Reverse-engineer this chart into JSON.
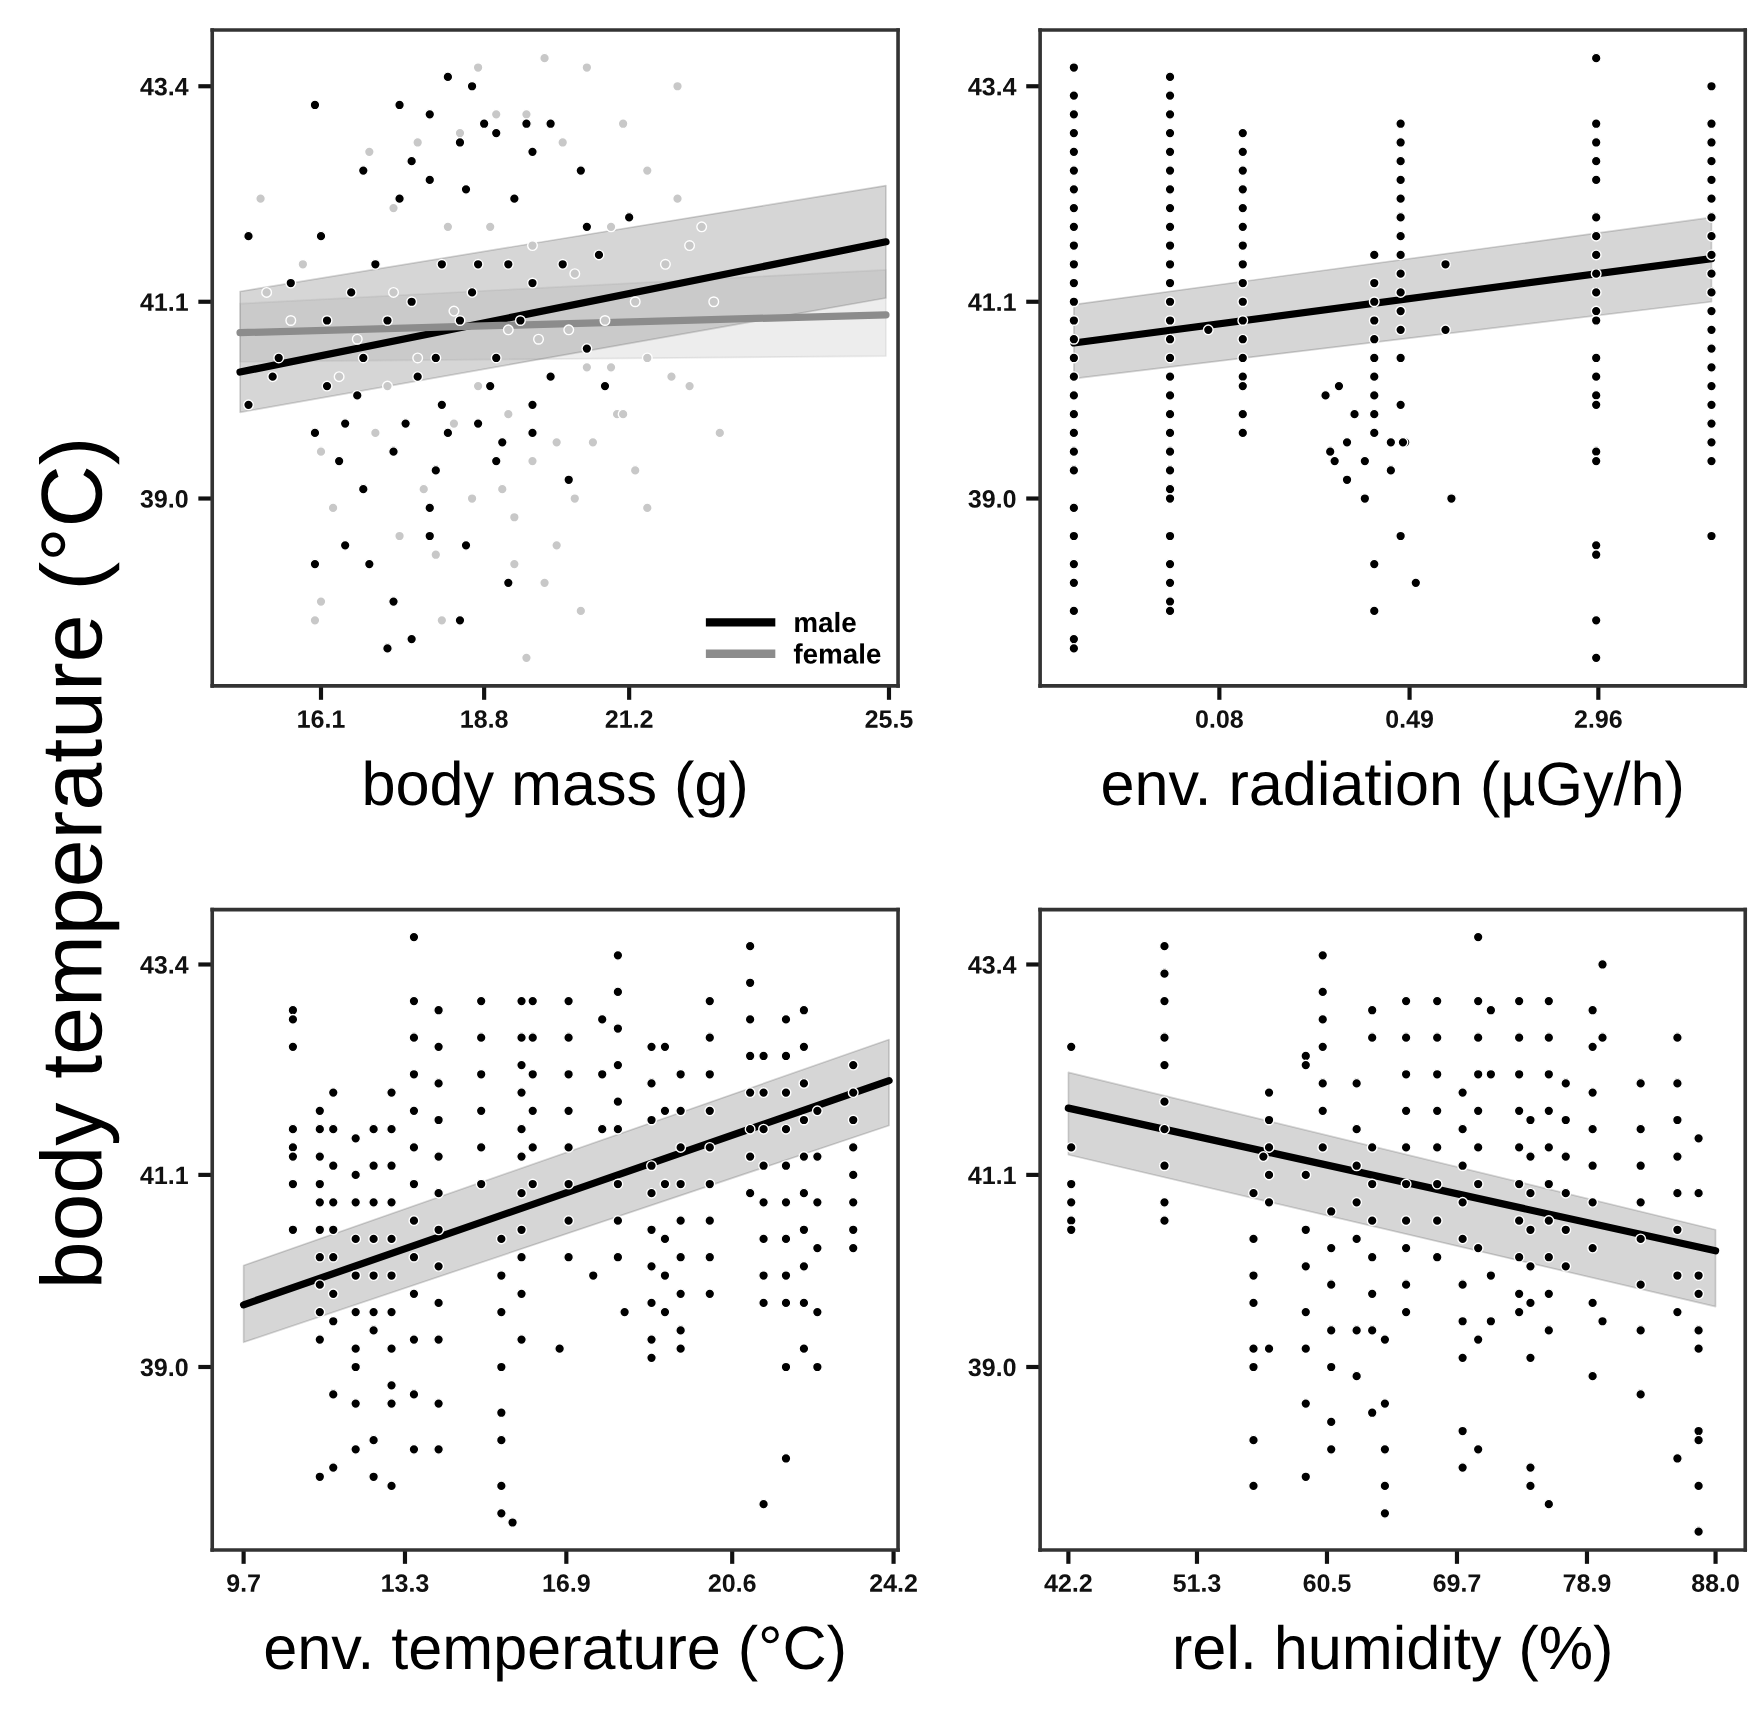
{
  "chart_data": [
    {
      "type": "scatter",
      "ylabel": "body temperature (°C)",
      "xlabel": "body mass (g)",
      "xlim": [
        14.3,
        25.65
      ],
      "xticks": [
        16.1,
        18.8,
        21.2,
        25.5
      ],
      "ylim": [
        37.0,
        44.0
      ],
      "yticks": [
        {
          "value": 39,
          "label": "39.0"
        },
        {
          "value": 41.1,
          "label": "41.1"
        },
        {
          "value": 43.4,
          "label": "43.4"
        }
      ],
      "legend": "bottom right",
      "series": [
        {
          "color": "#c8c8c8",
          "marker": "circle",
          "x": [
            19.8,
            20.5,
            18.7,
            22.0,
            15.1,
            15.8,
            21.1,
            21.5,
            22.0,
            22.4,
            22.2,
            22.6,
            22.7,
            22.2,
            21.9,
            21.5,
            21.3,
            21.0,
            20.3,
            20.0,
            19.8,
            20.4,
            19.5,
            18.0,
            18.1,
            16.1,
            16.0,
            16.3,
            17.4,
            19.3,
            19.3,
            16.4,
            16.1,
            17.0,
            17.8,
            18.6,
            19.1,
            19.6,
            20.0,
            20.6,
            21.1,
            20.5,
            20.9,
            21.5,
            20.2,
            20.8,
            21.3,
            21.8,
            20.3,
            20.9,
            20.1,
            19.5,
            19.0,
            18.4,
            17.7,
            16.9,
            17.3,
            18.2,
            18.9,
            19.6,
            17.3,
            18.3,
            19.2,
            19.7,
            17.7,
            18.7,
            17.2,
            19.2,
            18.3,
            16.7,
            15.6,
            15.2
          ],
          "values": [
            43.7,
            43.6,
            43.6,
            43.4,
            42.2,
            41.5,
            43.0,
            42.5,
            42.2,
            41.9,
            41.7,
            41.1,
            39.7,
            40.2,
            40.3,
            38.9,
            39.3,
            39.9,
            39.0,
            38.5,
            38.1,
            37.8,
            37.3,
            38.4,
            37.7,
            37.9,
            37.7,
            38.9,
            38.6,
            38.8,
            38.3,
            40.3,
            39.5,
            39.7,
            39.1,
            39.0,
            39.1,
            39.4,
            39.6,
            39.6,
            39.9,
            40.4,
            40.4,
            40.5,
            40.8,
            40.9,
            41.1,
            41.5,
            41.4,
            41.9,
            42.8,
            43.1,
            43.1,
            42.9,
            42.8,
            42.7,
            42.1,
            41.9,
            41.9,
            41.7,
            41.2,
            41.0,
            40.8,
            40.7,
            40.5,
            40.2,
            40.2,
            39.9,
            39.8,
            40.7,
            40.9,
            41.2
          ]
        },
        {
          "color": "#000000",
          "marker": "circle",
          "x": [
            14.9,
            14.9,
            16.0,
            17.4,
            18.2,
            18.6,
            15.6,
            16.1,
            16.0,
            16.0,
            16.9,
            17.2,
            17.6,
            17.3,
            18.4,
            17.9,
            19.2,
            18.5,
            16.5,
            16.8,
            17.9,
            19.6,
            20.2,
            20.8,
            21.2,
            20.4,
            19.9,
            19.5,
            18.8,
            17.9,
            16.8,
            17.6,
            18.4,
            19.0,
            19.6,
            17.4,
            17.9,
            18.5,
            19.3,
            20.5,
            17.0,
            18.1,
            18.7,
            19.2,
            20.1,
            20.7,
            16.6,
            17.6,
            18.6,
            19.6,
            16.2,
            17.2,
            18.4,
            19.4,
            15.4,
            16.8,
            18.0,
            19.0,
            20.5,
            16.2,
            17.7,
            18.9,
            19.9,
            16.7,
            18.1,
            19.6,
            16.5,
            17.5,
            18.7,
            16.4,
            17.3,
            18.2,
            19.1,
            18.0,
            19.0,
            15.3
          ],
          "values": [
            41.8,
            40.0,
            43.2,
            43.2,
            43.5,
            43.4,
            41.3,
            41.8,
            39.7,
            38.3,
            38.3,
            37.4,
            37.5,
            37.9,
            37.7,
            38.6,
            38.1,
            38.5,
            38.5,
            39.1,
            38.9,
            39.7,
            39.2,
            40.2,
            42.0,
            42.5,
            43.0,
            43.0,
            43.0,
            43.1,
            42.5,
            42.6,
            42.8,
            42.9,
            42.7,
            42.2,
            42.4,
            42.3,
            42.2,
            41.9,
            41.5,
            41.5,
            41.5,
            41.5,
            41.5,
            41.6,
            41.2,
            41.1,
            41.2,
            41.3,
            40.9,
            40.9,
            40.9,
            40.9,
            40.5,
            40.5,
            40.5,
            40.5,
            40.6,
            40.2,
            40.3,
            40.2,
            40.3,
            40.1,
            40.0,
            40.0,
            39.8,
            39.8,
            39.8,
            39.4,
            39.5,
            39.7,
            39.6,
            39.3,
            39.4,
            40.3
          ]
        },
        {
          "type": "line",
          "name": "male",
          "color": "#000000",
          "x": [
            14.76,
            25.45
          ],
          "values": [
            40.35,
            41.74
          ],
          "lower": [
            39.92,
            41.14
          ],
          "upper": [
            41.21,
            42.34
          ]
        },
        {
          "type": "line",
          "name": "female",
          "color": "#8c8c8c",
          "x": [
            14.76,
            25.45
          ],
          "values": [
            40.77,
            40.96
          ],
          "lower": [
            40.46,
            40.52
          ],
          "upper": [
            41.08,
            41.44
          ]
        }
      ]
    },
    {
      "type": "scatter",
      "xlabel": "env. radiation (µGy/h)",
      "log": "x",
      "xlim": [
        0.0145,
        12
      ],
      "xticks": [
        0.08,
        0.49,
        2.96
      ],
      "ylim": [
        37.0,
        44.0
      ],
      "yticks": [
        {
          "value": 39,
          "label": "39.0"
        },
        {
          "value": 41.1,
          "label": "41.1"
        },
        {
          "value": 43.4,
          "label": "43.4"
        }
      ],
      "series": [
        {
          "color": "#000000",
          "marker": "circle",
          "x": [
            0.02,
            0.02,
            0.02,
            0.02,
            0.02,
            0.02,
            0.02,
            0.02,
            0.02,
            0.02,
            0.02,
            0.02,
            0.02,
            0.02,
            0.02,
            0.02,
            0.02,
            0.02,
            0.02,
            0.02,
            0.02,
            0.02,
            0.02,
            0.02,
            0.02,
            0.02,
            0.02,
            0.02,
            0.02,
            0.05,
            0.05,
            0.05,
            0.05,
            0.05,
            0.05,
            0.05,
            0.05,
            0.05,
            0.05,
            0.05,
            0.05,
            0.05,
            0.05,
            0.05,
            0.05,
            0.05,
            0.05,
            0.05,
            0.05,
            0.05,
            0.05,
            0.05,
            0.05,
            0.05,
            0.05,
            0.05,
            0.05,
            0.05,
            0.1,
            0.1,
            0.1,
            0.1,
            0.1,
            0.1,
            0.1,
            0.1,
            0.1,
            0.1,
            0.1,
            0.1,
            0.1,
            0.1,
            0.1,
            0.1,
            0.1,
            0.072,
            0.22,
            0.25,
            0.29,
            0.23,
            0.27,
            0.24,
            0.27,
            0.32,
            0.32,
            0.41,
            0.41,
            0.47,
            0.46,
            0.45,
            0.52,
            0.45,
            0.35,
            0.35,
            0.73,
            0.69,
            0.69,
            0.35,
            0.35,
            0.35,
            0.35,
            0.35,
            0.35,
            0.35,
            0.35,
            0.35,
            0.35,
            0.45,
            0.45,
            0.45,
            0.45,
            0.45,
            0.45,
            0.45,
            0.45,
            0.45,
            0.45,
            0.45,
            0.45,
            0.45,
            2.9,
            2.9,
            2.9,
            2.9,
            2.9,
            2.9,
            2.9,
            2.9,
            2.9,
            2.9,
            2.9,
            2.9,
            2.9,
            2.9,
            2.9,
            2.9,
            2.9,
            2.9,
            2.9,
            2.9,
            2.9,
            2.9,
            8.7,
            8.7,
            8.7,
            8.7,
            8.7,
            8.7,
            8.7,
            8.7,
            8.7,
            8.7,
            8.7,
            8.7,
            8.7,
            8.7,
            8.7,
            8.7,
            8.7,
            8.7,
            8.7,
            8.7,
            8.7
          ],
          "values": [
            43.6,
            43.3,
            43.1,
            42.9,
            42.7,
            42.5,
            42.3,
            42.1,
            41.9,
            41.7,
            41.5,
            41.3,
            41.1,
            40.9,
            40.7,
            40.5,
            40.3,
            40.1,
            39.9,
            39.7,
            39.5,
            39.3,
            38.9,
            38.6,
            38.3,
            38.1,
            37.8,
            37.5,
            37.4,
            43.5,
            43.3,
            43.1,
            42.9,
            42.7,
            42.5,
            42.3,
            42.1,
            41.9,
            41.7,
            41.5,
            41.3,
            41.1,
            40.9,
            40.7,
            40.5,
            40.3,
            40.1,
            39.9,
            39.7,
            39.5,
            39.3,
            39.1,
            39.0,
            38.6,
            38.3,
            38.1,
            37.9,
            37.8,
            42.9,
            42.7,
            42.5,
            42.3,
            42.1,
            41.9,
            41.7,
            41.5,
            41.3,
            41.1,
            40.9,
            40.7,
            40.5,
            40.3,
            40.2,
            39.9,
            39.7,
            40.8,
            40.1,
            40.2,
            39.9,
            39.5,
            39.6,
            39.4,
            39.2,
            39.4,
            39.0,
            39.6,
            39.3,
            39.6,
            39.6,
            40.0,
            38.1,
            38.6,
            38.3,
            37.8,
            39.0,
            41.5,
            40.8,
            41.6,
            41.3,
            41.1,
            40.9,
            40.7,
            40.5,
            40.3,
            40.1,
            39.9,
            39.7,
            43.0,
            42.8,
            42.6,
            42.4,
            42.2,
            42.0,
            41.8,
            41.6,
            41.4,
            41.2,
            41.0,
            40.8,
            40.5,
            43.7,
            43.0,
            42.8,
            42.6,
            42.4,
            42.0,
            41.8,
            41.6,
            41.4,
            41.2,
            41.0,
            40.9,
            40.5,
            40.3,
            40.1,
            40.0,
            39.5,
            39.4,
            38.5,
            38.4,
            37.7,
            37.3,
            43.4,
            43.0,
            42.8,
            42.6,
            42.4,
            42.2,
            42.0,
            41.8,
            41.6,
            41.4,
            41.2,
            41.0,
            40.8,
            40.6,
            40.4,
            40.2,
            40.0,
            39.8,
            39.6,
            39.4,
            38.6
          ]
        },
        {
          "type": "line",
          "color": "#000000",
          "x": [
            0.02,
            8.7
          ],
          "values": [
            40.66,
            41.56
          ],
          "lower": [
            40.28,
            41.1
          ],
          "upper": [
            41.07,
            42.0
          ]
        }
      ]
    },
    {
      "type": "scatter",
      "xlabel": "env. temperature (°C)",
      "xlim": [
        9.0,
        24.3
      ],
      "xticks": [
        9.7,
        13.3,
        16.9,
        20.6,
        24.2
      ],
      "ylim": [
        37.0,
        44.0
      ],
      "yticks": [
        {
          "value": 39,
          "label": "39.0"
        },
        {
          "value": 41.1,
          "label": "41.1"
        },
        {
          "value": 43.4,
          "label": "43.4"
        }
      ],
      "series": [
        {
          "color": "#000000",
          "marker": "circle",
          "x": [
            10.8,
            10.8,
            10.8,
            10.8,
            10.8,
            10.8,
            10.8,
            10.8,
            11.4,
            11.4,
            11.4,
            11.4,
            11.4,
            11.4,
            11.4,
            11.4,
            11.4,
            11.4,
            11.4,
            11.7,
            11.7,
            11.7,
            11.7,
            11.7,
            11.7,
            11.7,
            11.7,
            11.7,
            11.7,
            12.2,
            12.2,
            12.2,
            12.2,
            12.2,
            12.2,
            12.2,
            12.2,
            12.2,
            12.2,
            12.6,
            12.6,
            12.6,
            12.6,
            12.6,
            12.6,
            12.6,
            12.6,
            12.6,
            13.0,
            13.0,
            13.0,
            13.0,
            13.0,
            13.0,
            13.0,
            13.0,
            13.0,
            13.0,
            13.0,
            13.5,
            13.5,
            13.5,
            13.5,
            13.5,
            13.5,
            13.5,
            13.5,
            13.5,
            13.5,
            13.5,
            13.5,
            13.5,
            14.05,
            14.05,
            14.05,
            14.05,
            14.05,
            14.05,
            14.05,
            14.05,
            14.05,
            14.05,
            14.05,
            14.05,
            15.0,
            15.0,
            15.0,
            15.0,
            15.0,
            15.0,
            15.45,
            15.45,
            15.45,
            15.45,
            15.45,
            15.45,
            15.45,
            15.45,
            15.7,
            15.9,
            15.9,
            15.9,
            15.9,
            15.9,
            15.9,
            15.9,
            15.9,
            15.9,
            15.9,
            15.9,
            16.15,
            16.15,
            16.15,
            16.15,
            16.15,
            16.15,
            16.95,
            16.95,
            16.95,
            16.95,
            16.95,
            16.95,
            16.95,
            16.95,
            16.75,
            17.7,
            17.7,
            17.7,
            17.5,
            18.05,
            18.05,
            18.05,
            18.05,
            18.05,
            18.05,
            18.05,
            18.05,
            18.05,
            18.2,
            18.8,
            18.8,
            18.8,
            18.8,
            18.8,
            18.8,
            18.8,
            18.8,
            18.8,
            18.8,
            19.1,
            19.1,
            19.1,
            19.1,
            19.1,
            19.1,
            19.45,
            19.45,
            19.45,
            19.45,
            19.45,
            19.45,
            19.45,
            19.45,
            19.45,
            20.1,
            20.1,
            20.1,
            20.1,
            20.1,
            20.1,
            20.1,
            20.1,
            20.1,
            21.0,
            21.0,
            21.0,
            21.0,
            21.0,
            21.0,
            21.0,
            21.0,
            21.3,
            21.3,
            21.3,
            21.3,
            21.3,
            21.3,
            21.3,
            21.3,
            21.3,
            21.8,
            21.8,
            21.8,
            21.8,
            21.8,
            21.8,
            21.8,
            21.8,
            21.8,
            21.8,
            21.8,
            22.2,
            22.2,
            22.2,
            22.2,
            22.2,
            22.2,
            22.2,
            22.2,
            22.2,
            22.2,
            22.5,
            22.5,
            22.5,
            22.5,
            22.5,
            22.5,
            23.3,
            23.3,
            23.3,
            23.3,
            23.3,
            23.3,
            23.3,
            23.3
          ],
          "values": [
            42.9,
            42.8,
            42.5,
            41.6,
            41.4,
            41.3,
            41.0,
            40.5,
            41.8,
            41.6,
            41.3,
            41.0,
            40.8,
            40.5,
            40.2,
            39.9,
            39.6,
            39.3,
            37.8,
            42.0,
            41.6,
            41.2,
            40.8,
            40.5,
            40.2,
            39.8,
            39.5,
            38.7,
            37.9,
            41.5,
            41.1,
            40.8,
            40.4,
            40.0,
            39.6,
            39.2,
            39.0,
            38.6,
            38.1,
            41.6,
            41.2,
            40.8,
            40.4,
            40.0,
            39.6,
            39.4,
            38.2,
            37.8,
            42.0,
            41.6,
            41.2,
            40.8,
            40.4,
            40.0,
            39.6,
            39.2,
            38.8,
            38.6,
            37.7,
            43.7,
            43.0,
            42.6,
            42.2,
            41.8,
            41.4,
            41.0,
            40.6,
            40.2,
            39.8,
            39.3,
            38.7,
            38.1,
            42.9,
            42.5,
            42.1,
            41.7,
            41.3,
            40.9,
            40.5,
            40.1,
            39.7,
            39.3,
            38.6,
            38.1,
            43.0,
            42.6,
            42.2,
            41.8,
            41.4,
            41.0,
            40.4,
            40.0,
            39.6,
            39.0,
            38.5,
            38.2,
            37.7,
            37.4,
            37.3,
            43.0,
            42.6,
            42.3,
            42.0,
            41.6,
            41.3,
            40.9,
            40.5,
            40.2,
            39.8,
            39.3,
            43.0,
            42.6,
            42.2,
            41.8,
            41.4,
            41.0,
            43.0,
            42.6,
            42.2,
            41.8,
            41.4,
            41.0,
            40.6,
            40.2,
            39.2,
            42.8,
            42.2,
            41.6,
            40.0,
            43.5,
            43.1,
            42.7,
            42.3,
            41.9,
            41.6,
            41.0,
            40.6,
            40.2,
            39.6,
            42.5,
            42.1,
            41.7,
            41.2,
            40.9,
            40.5,
            40.1,
            39.7,
            39.3,
            39.1,
            42.5,
            41.8,
            41.0,
            40.4,
            40.0,
            39.6,
            42.2,
            41.8,
            41.4,
            41.0,
            40.6,
            40.2,
            39.8,
            39.4,
            39.2,
            43.0,
            42.6,
            42.2,
            41.8,
            41.4,
            41.0,
            40.6,
            40.2,
            39.8,
            43.6,
            43.2,
            42.8,
            42.4,
            42.0,
            41.6,
            41.3,
            40.9,
            42.4,
            42.0,
            41.6,
            41.2,
            40.8,
            40.4,
            40.0,
            39.7,
            37.5,
            42.8,
            42.4,
            42.0,
            41.6,
            41.2,
            40.8,
            40.4,
            40.0,
            39.7,
            39.0,
            38.0,
            42.9,
            42.5,
            42.1,
            41.7,
            41.3,
            40.9,
            40.5,
            40.1,
            39.7,
            39.2,
            41.8,
            41.3,
            40.8,
            40.3,
            39.6,
            39.0,
            42.3,
            42.0,
            41.7,
            41.4,
            41.1,
            40.8,
            40.5,
            40.3
          ]
        },
        {
          "type": "line",
          "color": "#000000",
          "x": [
            9.7,
            24.1
          ],
          "values": [
            39.68,
            42.13
          ],
          "lower": [
            39.27,
            41.64
          ],
          "upper": [
            40.11,
            42.58
          ]
        }
      ]
    },
    {
      "type": "scatter",
      "xlabel": "rel. humidity (%)",
      "xlim": [
        40.2,
        90.1
      ],
      "xticks": [
        42.2,
        51.3,
        60.5,
        69.7,
        78.9,
        {
          "value": 88,
          "label": "88.0"
        }
      ],
      "ylim": [
        37.0,
        44.0
      ],
      "yticks": [
        {
          "value": 39,
          "label": "39.0"
        },
        {
          "value": 41.1,
          "label": "41.1"
        },
        {
          "value": 43.4,
          "label": "43.4"
        }
      ],
      "series": [
        {
          "color": "#000000",
          "marker": "circle",
          "x": [
            42.4,
            42.4,
            42.4,
            42.4,
            42.4,
            42.4,
            49.0,
            49.0,
            49.0,
            49.0,
            49.0,
            49.0,
            49.0,
            49.0,
            49.0,
            49.0,
            55.3,
            55.3,
            55.3,
            55.3,
            55.3,
            55.3,
            55.3,
            55.3,
            56.0,
            56.4,
            56.4,
            56.4,
            56.4,
            56.4,
            56.4,
            59.0,
            59.0,
            59.0,
            59.0,
            59.0,
            59.0,
            59.0,
            59.0,
            59.0,
            60.2,
            60.2,
            60.2,
            60.2,
            60.2,
            60.2,
            60.2,
            60.8,
            60.8,
            60.8,
            60.8,
            60.8,
            60.8,
            60.8,
            62.6,
            62.6,
            62.6,
            62.6,
            62.6,
            62.6,
            62.6,
            63.7,
            63.7,
            63.7,
            63.7,
            63.7,
            63.7,
            63.7,
            63.7,
            63.7,
            64.6,
            64.6,
            64.6,
            64.6,
            64.6,
            66.1,
            66.1,
            66.1,
            66.1,
            66.1,
            66.1,
            66.1,
            66.1,
            66.1,
            66.1,
            68.3,
            68.3,
            68.3,
            68.3,
            68.3,
            68.3,
            68.3,
            68.3,
            70.1,
            70.1,
            70.1,
            70.1,
            70.1,
            70.1,
            70.1,
            70.1,
            70.1,
            70.1,
            71.2,
            71.2,
            71.2,
            71.2,
            71.2,
            71.2,
            71.2,
            71.2,
            71.2,
            71.2,
            72.1,
            72.1,
            72.1,
            72.1,
            74.1,
            74.1,
            74.1,
            74.1,
            74.1,
            74.1,
            74.1,
            74.1,
            74.1,
            74.1,
            74.9,
            74.9,
            74.9,
            74.9,
            74.9,
            74.9,
            74.9,
            74.9,
            74.9,
            76.2,
            76.2,
            76.2,
            76.2,
            76.2,
            76.2,
            76.2,
            76.2,
            76.2,
            76.2,
            76.2,
            77.4,
            77.4,
            77.4,
            77.4,
            77.4,
            77.4,
            79.3,
            79.3,
            79.3,
            79.3,
            79.3,
            79.3,
            79.3,
            79.3,
            79.3,
            80.0,
            80.0,
            80.0,
            82.7,
            82.7,
            82.7,
            82.7,
            82.7,
            82.7,
            82.7,
            82.7,
            85.3,
            85.3,
            85.3,
            85.3,
            85.3,
            85.3,
            85.3,
            85.3,
            85.3,
            86.8,
            86.8,
            86.8,
            86.8,
            86.8,
            86.8,
            86.8,
            86.8,
            86.8,
            86.8
          ],
          "values": [
            42.5,
            41.4,
            41.0,
            40.8,
            40.6,
            40.5,
            43.6,
            43.3,
            43.0,
            42.6,
            42.3,
            41.9,
            41.6,
            41.2,
            40.8,
            40.6,
            40.9,
            40.4,
            40.0,
            39.7,
            39.2,
            39.0,
            38.2,
            37.7,
            41.3,
            42.0,
            41.7,
            41.4,
            41.1,
            40.8,
            39.2,
            42.4,
            42.3,
            41.1,
            40.5,
            40.1,
            39.6,
            39.2,
            38.6,
            37.8,
            43.5,
            43.1,
            42.8,
            42.5,
            42.1,
            41.8,
            41.4,
            40.7,
            40.3,
            39.9,
            39.4,
            39.0,
            38.4,
            38.1,
            42.1,
            41.6,
            41.2,
            40.8,
            40.4,
            39.4,
            38.9,
            42.9,
            42.6,
            41.4,
            41.0,
            40.6,
            40.2,
            39.8,
            39.4,
            38.5,
            39.3,
            38.6,
            38.1,
            37.7,
            37.4,
            43.0,
            42.6,
            42.2,
            41.8,
            41.4,
            41.0,
            40.6,
            40.3,
            39.9,
            39.6,
            43.0,
            42.6,
            42.2,
            41.8,
            41.4,
            41.0,
            40.6,
            40.2,
            42.0,
            41.6,
            41.2,
            40.8,
            40.4,
            39.9,
            39.5,
            39.1,
            38.3,
            37.9,
            43.7,
            43.0,
            42.6,
            42.2,
            41.8,
            41.4,
            41.0,
            40.3,
            39.3,
            38.1,
            42.9,
            42.2,
            40.0,
            39.5,
            43.0,
            42.6,
            42.2,
            41.8,
            41.4,
            41.0,
            40.6,
            40.2,
            39.8,
            39.6,
            41.7,
            41.3,
            40.9,
            40.5,
            40.1,
            39.7,
            39.1,
            37.9,
            37.7,
            43.0,
            42.6,
            42.2,
            41.8,
            41.4,
            41.0,
            40.6,
            40.2,
            39.8,
            39.4,
            37.5,
            42.1,
            41.7,
            41.3,
            40.9,
            40.5,
            40.1,
            42.9,
            42.5,
            42.0,
            41.6,
            41.2,
            40.8,
            40.3,
            39.7,
            38.9,
            43.4,
            42.6,
            39.5,
            42.1,
            41.6,
            41.2,
            40.8,
            40.4,
            39.9,
            39.4,
            38.7,
            42.6,
            42.1,
            41.7,
            41.3,
            40.9,
            40.5,
            40.0,
            39.6,
            38.0,
            41.5,
            40.9,
            40.0,
            39.8,
            39.4,
            39.2,
            38.3,
            38.2,
            37.7,
            37.2
          ]
        },
        {
          "type": "line",
          "color": "#000000",
          "x": [
            42.2,
            88.0
          ],
          "values": [
            41.83,
            40.27
          ],
          "lower": [
            41.32,
            39.66
          ],
          "upper": [
            42.22,
            40.5
          ]
        }
      ]
    }
  ]
}
